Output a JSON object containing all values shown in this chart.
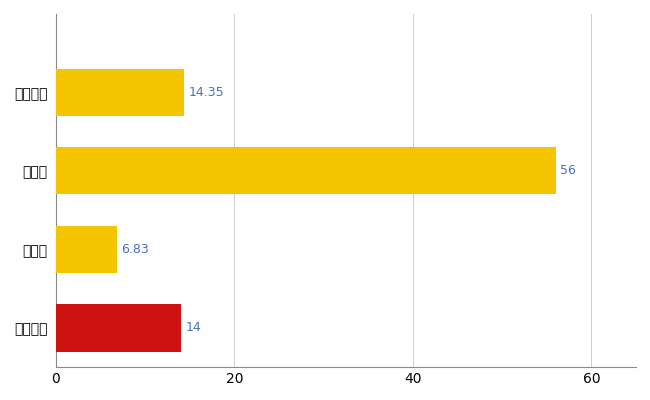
{
  "categories": [
    "紀の川市",
    "県平均",
    "県最大",
    "全国平均"
  ],
  "values": [
    14,
    6.83,
    56,
    14.35
  ],
  "bar_colors": [
    "#CC1111",
    "#F5C400",
    "#F5C400",
    "#F5C400"
  ],
  "value_labels": [
    "14",
    "6.83",
    "56",
    "14.35"
  ],
  "label_color": "#4472C4",
  "xlim": [
    0,
    65
  ],
  "xticks": [
    0,
    20,
    40,
    60
  ],
  "grid_color": "#CCCCCC",
  "bg_color": "#FFFFFF",
  "bar_height": 0.6
}
